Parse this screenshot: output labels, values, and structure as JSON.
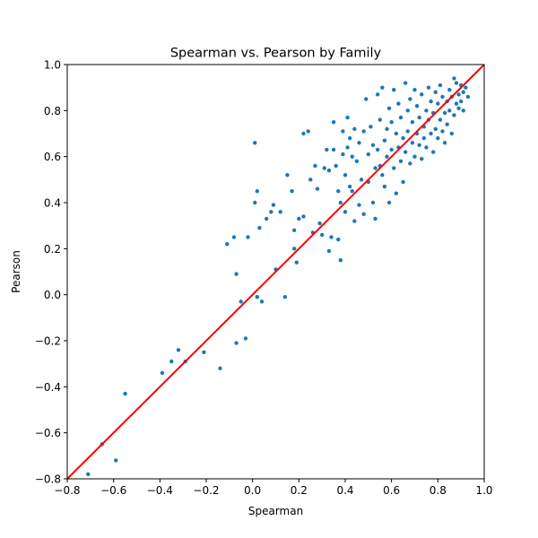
{
  "chart_data": {
    "type": "scatter",
    "title": "Spearman vs. Pearson by Family",
    "xlabel": "Spearman",
    "ylabel": "Pearson",
    "xlim": [
      -0.8,
      1.0
    ],
    "ylim": [
      -0.8,
      1.0
    ],
    "xticks": [
      "−0.8",
      "−0.6",
      "−0.4",
      "−0.2",
      "0.0",
      "0.2",
      "0.4",
      "0.6",
      "0.8",
      "1.0"
    ],
    "yticks": [
      "−0.8",
      "−0.6",
      "−0.4",
      "−0.2",
      "0.0",
      "0.2",
      "0.4",
      "0.6",
      "0.8",
      "1.0"
    ],
    "grid": false,
    "point_color": "#1f77b4",
    "reference_line": {
      "x": [
        -0.8,
        1.0
      ],
      "y": [
        -0.8,
        1.0
      ],
      "color": "#ff0000"
    },
    "series": [
      {
        "points": [
          [
            -0.71,
            -0.78
          ],
          [
            -0.65,
            -0.65
          ],
          [
            -0.59,
            -0.72
          ],
          [
            -0.55,
            -0.43
          ],
          [
            -0.39,
            -0.34
          ],
          [
            -0.35,
            -0.29
          ],
          [
            -0.32,
            -0.24
          ],
          [
            -0.29,
            -0.29
          ],
          [
            -0.21,
            -0.25
          ],
          [
            -0.14,
            -0.32
          ],
          [
            -0.07,
            -0.21
          ],
          [
            -0.03,
            -0.19
          ],
          [
            -0.05,
            -0.03
          ],
          [
            0.02,
            -0.01
          ],
          [
            0.04,
            -0.03
          ],
          [
            0.14,
            -0.01
          ],
          [
            -0.07,
            0.09
          ],
          [
            -0.11,
            0.22
          ],
          [
            -0.08,
            0.25
          ],
          [
            -0.02,
            0.25
          ],
          [
            0.01,
            0.4
          ],
          [
            0.02,
            0.45
          ],
          [
            0.03,
            0.29
          ],
          [
            0.06,
            0.33
          ],
          [
            0.08,
            0.36
          ],
          [
            0.09,
            0.39
          ],
          [
            0.12,
            0.36
          ],
          [
            0.1,
            0.11
          ],
          [
            0.01,
            0.66
          ],
          [
            0.15,
            0.52
          ],
          [
            0.17,
            0.45
          ],
          [
            0.18,
            0.28
          ],
          [
            0.19,
            0.14
          ],
          [
            0.18,
            0.2
          ],
          [
            0.2,
            0.33
          ],
          [
            0.22,
            0.34
          ],
          [
            0.22,
            0.7
          ],
          [
            0.24,
            0.71
          ],
          [
            0.25,
            0.5
          ],
          [
            0.26,
            0.27
          ],
          [
            0.27,
            0.56
          ],
          [
            0.28,
            0.46
          ],
          [
            0.29,
            0.31
          ],
          [
            0.3,
            0.26
          ],
          [
            0.31,
            0.55
          ],
          [
            0.32,
            0.63
          ],
          [
            0.33,
            0.19
          ],
          [
            0.33,
            0.54
          ],
          [
            0.34,
            0.25
          ],
          [
            0.35,
            0.63
          ],
          [
            0.35,
            0.75
          ],
          [
            0.36,
            0.56
          ],
          [
            0.37,
            0.45
          ],
          [
            0.37,
            0.24
          ],
          [
            0.38,
            0.15
          ],
          [
            0.38,
            0.4
          ],
          [
            0.39,
            0.61
          ],
          [
            0.39,
            0.71
          ],
          [
            0.4,
            0.52
          ],
          [
            0.4,
            0.36
          ],
          [
            0.41,
            0.64
          ],
          [
            0.41,
            0.77
          ],
          [
            0.42,
            0.47
          ],
          [
            0.42,
            0.68
          ],
          [
            0.43,
            0.6
          ],
          [
            0.43,
            0.45
          ],
          [
            0.44,
            0.72
          ],
          [
            0.44,
            0.32
          ],
          [
            0.45,
            0.58
          ],
          [
            0.46,
            0.39
          ],
          [
            0.46,
            0.66
          ],
          [
            0.47,
            0.5
          ],
          [
            0.48,
            0.71
          ],
          [
            0.48,
            0.35
          ],
          [
            0.49,
            0.85
          ],
          [
            0.5,
            0.49
          ],
          [
            0.5,
            0.61
          ],
          [
            0.51,
            0.73
          ],
          [
            0.52,
            0.4
          ],
          [
            0.52,
            0.65
          ],
          [
            0.53,
            0.55
          ],
          [
            0.53,
            0.33
          ],
          [
            0.54,
            0.87
          ],
          [
            0.54,
            0.63
          ],
          [
            0.55,
            0.56
          ],
          [
            0.55,
            0.76
          ],
          [
            0.56,
            0.52
          ],
          [
            0.56,
            0.9
          ],
          [
            0.57,
            0.47
          ],
          [
            0.57,
            0.67
          ],
          [
            0.58,
            0.72
          ],
          [
            0.58,
            0.6
          ],
          [
            0.59,
            0.81
          ],
          [
            0.59,
            0.4
          ],
          [
            0.6,
            0.75
          ],
          [
            0.6,
            0.63
          ],
          [
            0.61,
            0.89
          ],
          [
            0.61,
            0.55
          ],
          [
            0.62,
            0.7
          ],
          [
            0.62,
            0.44
          ],
          [
            0.63,
            0.83
          ],
          [
            0.63,
            0.64
          ],
          [
            0.64,
            0.58
          ],
          [
            0.64,
            0.77
          ],
          [
            0.65,
            0.68
          ],
          [
            0.65,
            0.49
          ],
          [
            0.66,
            0.92
          ],
          [
            0.66,
            0.62
          ],
          [
            0.67,
            0.8
          ],
          [
            0.67,
            0.71
          ],
          [
            0.68,
            0.57
          ],
          [
            0.68,
            0.85
          ],
          [
            0.69,
            0.66
          ],
          [
            0.69,
            0.75
          ],
          [
            0.7,
            0.6
          ],
          [
            0.7,
            0.89
          ],
          [
            0.71,
            0.7
          ],
          [
            0.71,
            0.82
          ],
          [
            0.72,
            0.65
          ],
          [
            0.72,
            0.77
          ],
          [
            0.73,
            0.59
          ],
          [
            0.73,
            0.87
          ],
          [
            0.74,
            0.73
          ],
          [
            0.74,
            0.68
          ],
          [
            0.75,
            0.8
          ],
          [
            0.75,
            0.64
          ],
          [
            0.76,
            0.9
          ],
          [
            0.76,
            0.76
          ],
          [
            0.77,
            0.7
          ],
          [
            0.77,
            0.84
          ],
          [
            0.78,
            0.62
          ],
          [
            0.78,
            0.79
          ],
          [
            0.79,
            0.72
          ],
          [
            0.79,
            0.88
          ],
          [
            0.8,
            0.68
          ],
          [
            0.8,
            0.83
          ],
          [
            0.81,
            0.76
          ],
          [
            0.81,
            0.91
          ],
          [
            0.82,
            0.71
          ],
          [
            0.82,
            0.86
          ],
          [
            0.83,
            0.79
          ],
          [
            0.83,
            0.66
          ],
          [
            0.84,
            0.84
          ],
          [
            0.84,
            0.74
          ],
          [
            0.85,
            0.89
          ],
          [
            0.85,
            0.8
          ],
          [
            0.86,
            0.7
          ],
          [
            0.86,
            0.86
          ],
          [
            0.87,
            0.94
          ],
          [
            0.87,
            0.78
          ],
          [
            0.88,
            0.83
          ],
          [
            0.88,
            0.92
          ],
          [
            0.89,
            0.81
          ],
          [
            0.89,
            0.87
          ],
          [
            0.9,
            0.91
          ],
          [
            0.9,
            0.84
          ],
          [
            0.91,
            0.88
          ],
          [
            0.91,
            0.8
          ],
          [
            0.92,
            0.9
          ],
          [
            0.93,
            0.86
          ]
        ]
      }
    ]
  }
}
